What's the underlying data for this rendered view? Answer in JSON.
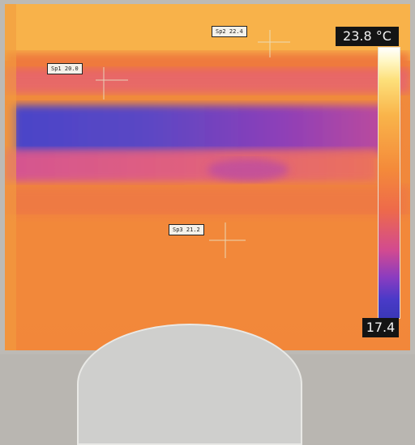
{
  "scale": {
    "max_label": "23.8 °C",
    "min_label": "17.4"
  },
  "spots": [
    {
      "name": "spot-1",
      "label": "Sp1 20.0"
    },
    {
      "name": "spot-2",
      "label": "Sp2 22.4"
    },
    {
      "name": "spot-3",
      "label": "Sp3 21.2"
    }
  ],
  "colors": {
    "hot": "#fff7c4",
    "warm": "#f49137",
    "mid": "#d24a90",
    "cold": "#3a38b8"
  }
}
